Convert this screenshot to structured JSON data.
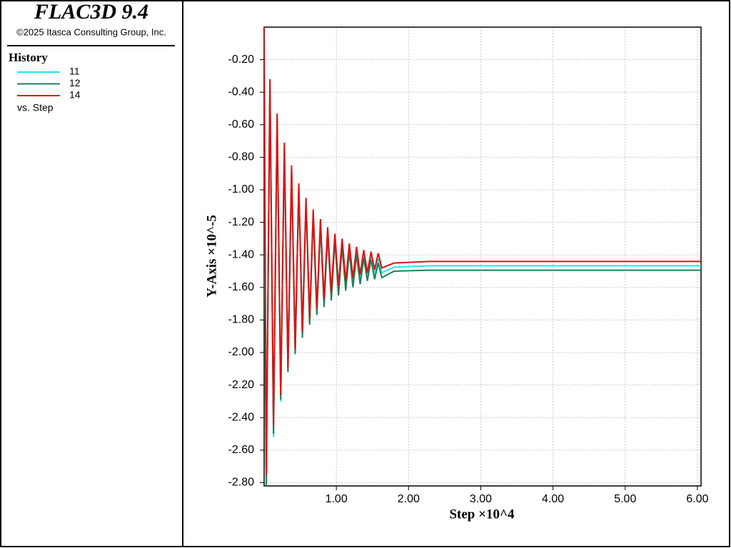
{
  "chart_data": {
    "type": "line",
    "title": "FLAC3D 9.4",
    "subtitle": "©2025 Itasca Consulting Group, Inc.",
    "legend_title": "History",
    "legend_note": "vs. Step",
    "x_label": "Step ×10^4",
    "y_label": "Y-Axis ×10^-5",
    "x": [
      0,
      0.03,
      0.08,
      0.13,
      0.18,
      0.23,
      0.28,
      0.33,
      0.38,
      0.43,
      0.48,
      0.53,
      0.58,
      0.63,
      0.68,
      0.73,
      0.78,
      0.83,
      0.88,
      0.93,
      0.98,
      1.03,
      1.08,
      1.13,
      1.18,
      1.23,
      1.28,
      1.33,
      1.38,
      1.43,
      1.48,
      1.53,
      1.58,
      1.63,
      1.8,
      2.3,
      6.05
    ],
    "series": [
      {
        "name": "11",
        "color": "#22e5e8",
        "values": [
          -0.85,
          -2.82,
          -0.33,
          -2.52,
          -0.55,
          -2.3,
          -0.73,
          -2.12,
          -0.87,
          -2.01,
          -0.98,
          -1.9,
          -1.07,
          -1.82,
          -1.14,
          -1.76,
          -1.2,
          -1.7,
          -1.25,
          -1.66,
          -1.29,
          -1.62,
          -1.32,
          -1.59,
          -1.35,
          -1.57,
          -1.37,
          -1.55,
          -1.39,
          -1.54,
          -1.41,
          -1.52,
          -1.42,
          -1.51,
          -1.475,
          -1.467,
          -1.467
        ]
      },
      {
        "name": "12",
        "color": "#1f7f5a",
        "values": [
          -0.9,
          -2.82,
          -0.34,
          -2.5,
          -0.56,
          -2.29,
          -0.74,
          -2.12,
          -0.88,
          -2.01,
          -0.99,
          -1.91,
          -1.08,
          -1.83,
          -1.16,
          -1.77,
          -1.22,
          -1.72,
          -1.27,
          -1.68,
          -1.31,
          -1.65,
          -1.35,
          -1.62,
          -1.38,
          -1.6,
          -1.4,
          -1.58,
          -1.42,
          -1.56,
          -1.43,
          -1.55,
          -1.45,
          -1.54,
          -1.5,
          -1.494,
          -1.494
        ]
      },
      {
        "name": "14",
        "color": "#e01010",
        "values": [
          0,
          -2.75,
          -0.32,
          -2.45,
          -0.53,
          -2.26,
          -0.71,
          -2.1,
          -0.85,
          -1.98,
          -0.96,
          -1.87,
          -1.05,
          -1.79,
          -1.12,
          -1.73,
          -1.18,
          -1.67,
          -1.23,
          -1.63,
          -1.27,
          -1.59,
          -1.3,
          -1.56,
          -1.33,
          -1.54,
          -1.35,
          -1.52,
          -1.37,
          -1.51,
          -1.38,
          -1.49,
          -1.39,
          -1.48,
          -1.45,
          -1.44,
          -1.44
        ]
      }
    ],
    "xlim": [
      0,
      6.05
    ],
    "ylim": [
      -2.82,
      0
    ],
    "xticks": [
      {
        "value": 1,
        "label": "1.00"
      },
      {
        "value": 2,
        "label": "2.00"
      },
      {
        "value": 3,
        "label": "3.00"
      },
      {
        "value": 4,
        "label": "4.00"
      },
      {
        "value": 5,
        "label": "5.00"
      },
      {
        "value": 6,
        "label": "6.00"
      }
    ],
    "yticks": [
      {
        "value": -0.2,
        "label": "-0.20"
      },
      {
        "value": -0.4,
        "label": "-0.40"
      },
      {
        "value": -0.6,
        "label": "-0.60"
      },
      {
        "value": -0.8,
        "label": "-0.80"
      },
      {
        "value": -1.0,
        "label": "-1.00"
      },
      {
        "value": -1.2,
        "label": "-1.20"
      },
      {
        "value": -1.4,
        "label": "-1.40"
      },
      {
        "value": -1.6,
        "label": "-1.60"
      },
      {
        "value": -1.8,
        "label": "-1.80"
      },
      {
        "value": -2.0,
        "label": "-2.00"
      },
      {
        "value": -2.2,
        "label": "-2.20"
      },
      {
        "value": -2.4,
        "label": "-2.40"
      },
      {
        "value": -2.6,
        "label": "-2.60"
      },
      {
        "value": -2.8,
        "label": "-2.80"
      }
    ],
    "grid": true
  }
}
